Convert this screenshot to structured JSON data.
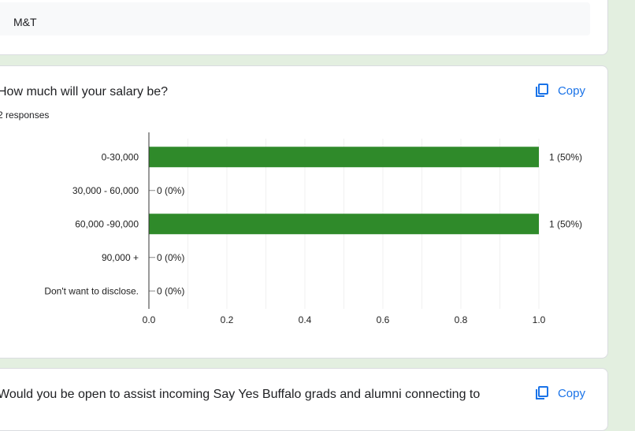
{
  "previous_answer": {
    "value": "M&T"
  },
  "salary_question": {
    "title": "How much will your salary be?",
    "responses": "2 responses",
    "copy_label": "Copy"
  },
  "next_question": {
    "title": "Would you be open to assist incoming Say Yes Buffalo grads and alumni connecting to",
    "copy_label": "Copy"
  },
  "icons": {
    "copy": "copy-icon"
  },
  "colors": {
    "bar": "#2f8a2a",
    "accent": "#1a73e8",
    "background": "#e3efe0"
  },
  "chart_data": {
    "type": "bar",
    "orientation": "horizontal",
    "categories": [
      "0-30,000",
      "30,000 - 60,000",
      "60,000 -90,000",
      "90,000 +",
      "Don't want to disclose."
    ],
    "values": [
      1,
      0,
      1,
      0,
      0
    ],
    "data_labels": [
      "1 (50%)",
      "0 (0%)",
      "1 (50%)",
      "0 (0%)",
      "0 (0%)"
    ],
    "xlim": [
      0,
      1
    ],
    "xticks": [
      "0.0",
      "0.2",
      "0.4",
      "0.6",
      "0.8",
      "1.0"
    ],
    "grid": true,
    "legend": "none"
  }
}
